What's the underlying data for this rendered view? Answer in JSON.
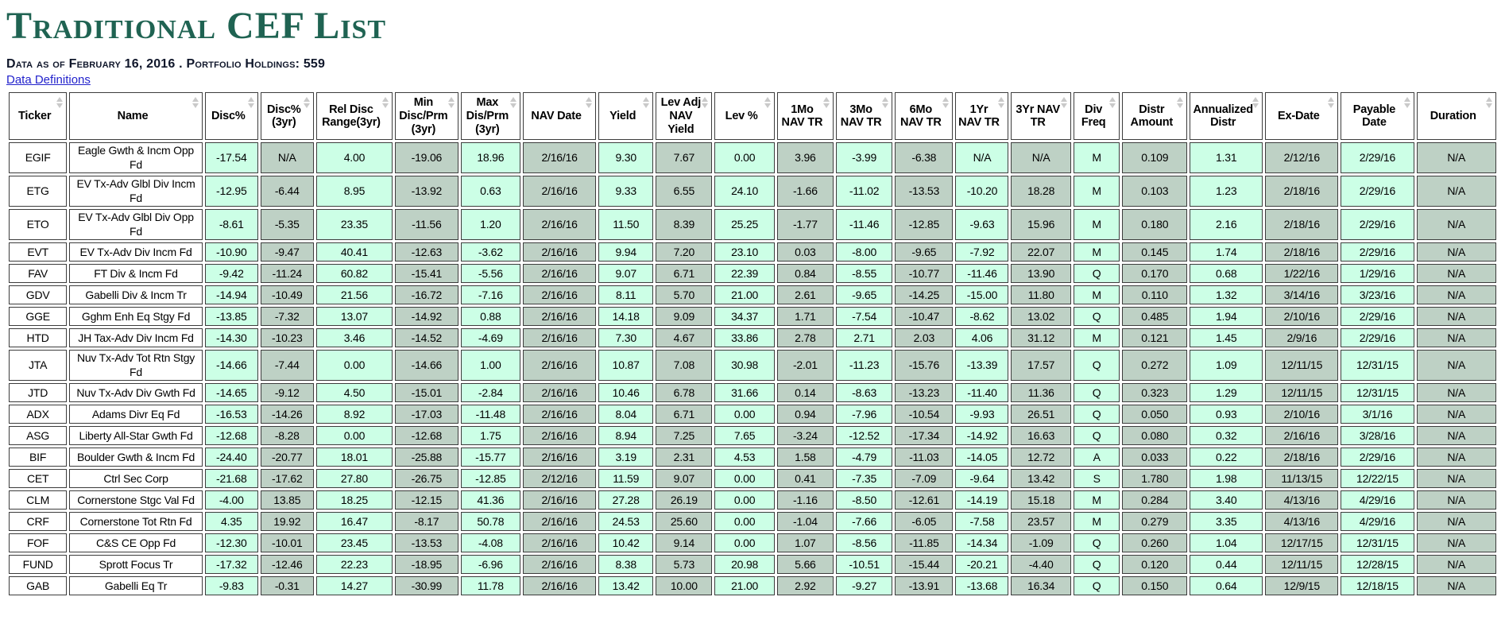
{
  "page": {
    "title": "Traditional CEF List",
    "meta": "Data as of February 16, 2016  .  Portfolio Holdings: 559",
    "definitions_link": "Data Definitions"
  },
  "colors": {
    "title_green": "#1f6352",
    "cell_green": "#ccffe6",
    "cell_gray": "#bed1c5",
    "link_blue": "#2222cc",
    "border": "#3c3c3c"
  },
  "table": {
    "columns": [
      "Ticker",
      "Name",
      "Disc%",
      "Disc% (3yr)",
      "Rel Disc Range(3yr)",
      "Min Disc/Prm (3yr)",
      "Max Dis/Prm (3yr)",
      "NAV Date",
      "Yield",
      "Lev Adj NAV Yield",
      "Lev %",
      "1Mo NAV TR",
      "3Mo NAV TR",
      "6Mo NAV TR",
      "1Yr NAV TR",
      "3Yr NAV TR",
      "Div Freq",
      "Distr Amount",
      "Annualized Distr",
      "Ex-Date",
      "Payable Date",
      "Duration"
    ],
    "rows": [
      [
        "EGIF",
        "Eagle Gwth & Incm Opp Fd",
        "-17.54",
        "N/A",
        "4.00",
        "-19.06",
        "18.96",
        "2/16/16",
        "9.30",
        "7.67",
        "0.00",
        "3.96",
        "-3.99",
        "-6.38",
        "N/A",
        "N/A",
        "M",
        "0.109",
        "1.31",
        "2/12/16",
        "2/29/16",
        "N/A"
      ],
      [
        "ETG",
        "EV Tx-Adv Glbl Div Incm Fd",
        "-12.95",
        "-6.44",
        "8.95",
        "-13.92",
        "0.63",
        "2/16/16",
        "9.33",
        "6.55",
        "24.10",
        "-1.66",
        "-11.02",
        "-13.53",
        "-10.20",
        "18.28",
        "M",
        "0.103",
        "1.23",
        "2/18/16",
        "2/29/16",
        "N/A"
      ],
      [
        "ETO",
        "EV Tx-Adv Glbl Div Opp Fd",
        "-8.61",
        "-5.35",
        "23.35",
        "-11.56",
        "1.20",
        "2/16/16",
        "11.50",
        "8.39",
        "25.25",
        "-1.77",
        "-11.46",
        "-12.85",
        "-9.63",
        "15.96",
        "M",
        "0.180",
        "2.16",
        "2/18/16",
        "2/29/16",
        "N/A"
      ],
      [
        "EVT",
        "EV Tx-Adv Div Incm Fd",
        "-10.90",
        "-9.47",
        "40.41",
        "-12.63",
        "-3.62",
        "2/16/16",
        "9.94",
        "7.20",
        "23.10",
        "0.03",
        "-8.00",
        "-9.65",
        "-7.92",
        "22.07",
        "M",
        "0.145",
        "1.74",
        "2/18/16",
        "2/29/16",
        "N/A"
      ],
      [
        "FAV",
        "FT Div & Incm Fd",
        "-9.42",
        "-11.24",
        "60.82",
        "-15.41",
        "-5.56",
        "2/16/16",
        "9.07",
        "6.71",
        "22.39",
        "0.84",
        "-8.55",
        "-10.77",
        "-11.46",
        "13.90",
        "Q",
        "0.170",
        "0.68",
        "1/22/16",
        "1/29/16",
        "N/A"
      ],
      [
        "GDV",
        "Gabelli Div & Incm Tr",
        "-14.94",
        "-10.49",
        "21.56",
        "-16.72",
        "-7.16",
        "2/16/16",
        "8.11",
        "5.70",
        "21.00",
        "2.61",
        "-9.65",
        "-14.25",
        "-15.00",
        "11.80",
        "M",
        "0.110",
        "1.32",
        "3/14/16",
        "3/23/16",
        "N/A"
      ],
      [
        "GGE",
        "Gghm Enh Eq Stgy Fd",
        "-13.85",
        "-7.32",
        "13.07",
        "-14.92",
        "0.88",
        "2/16/16",
        "14.18",
        "9.09",
        "34.37",
        "1.71",
        "-7.54",
        "-10.47",
        "-8.62",
        "13.02",
        "Q",
        "0.485",
        "1.94",
        "2/10/16",
        "2/29/16",
        "N/A"
      ],
      [
        "HTD",
        "JH Tax-Adv Div Incm Fd",
        "-14.30",
        "-10.23",
        "3.46",
        "-14.52",
        "-4.69",
        "2/16/16",
        "7.30",
        "4.67",
        "33.86",
        "2.78",
        "2.71",
        "2.03",
        "4.06",
        "31.12",
        "M",
        "0.121",
        "1.45",
        "2/9/16",
        "2/29/16",
        "N/A"
      ],
      [
        "JTA",
        "Nuv Tx-Adv Tot Rtn Stgy Fd",
        "-14.66",
        "-7.44",
        "0.00",
        "-14.66",
        "1.00",
        "2/16/16",
        "10.87",
        "7.08",
        "30.98",
        "-2.01",
        "-11.23",
        "-15.76",
        "-13.39",
        "17.57",
        "Q",
        "0.272",
        "1.09",
        "12/11/15",
        "12/31/15",
        "N/A"
      ],
      [
        "JTD",
        "Nuv Tx-Adv Div Gwth Fd",
        "-14.65",
        "-9.12",
        "4.50",
        "-15.01",
        "-2.84",
        "2/16/16",
        "10.46",
        "6.78",
        "31.66",
        "0.14",
        "-8.63",
        "-13.23",
        "-11.40",
        "11.36",
        "Q",
        "0.323",
        "1.29",
        "12/11/15",
        "12/31/15",
        "N/A"
      ],
      [
        "ADX",
        "Adams Divr Eq Fd",
        "-16.53",
        "-14.26",
        "8.92",
        "-17.03",
        "-11.48",
        "2/16/16",
        "8.04",
        "6.71",
        "0.00",
        "0.94",
        "-7.96",
        "-10.54",
        "-9.93",
        "26.51",
        "Q",
        "0.050",
        "0.93",
        "2/10/16",
        "3/1/16",
        "N/A"
      ],
      [
        "ASG",
        "Liberty All-Star Gwth Fd",
        "-12.68",
        "-8.28",
        "0.00",
        "-12.68",
        "1.75",
        "2/16/16",
        "8.94",
        "7.25",
        "7.65",
        "-3.24",
        "-12.52",
        "-17.34",
        "-14.92",
        "16.63",
        "Q",
        "0.080",
        "0.32",
        "2/16/16",
        "3/28/16",
        "N/A"
      ],
      [
        "BIF",
        "Boulder Gwth & Incm Fd",
        "-24.40",
        "-20.77",
        "18.01",
        "-25.88",
        "-15.77",
        "2/16/16",
        "3.19",
        "2.31",
        "4.53",
        "1.58",
        "-4.79",
        "-11.03",
        "-14.05",
        "12.72",
        "A",
        "0.033",
        "0.22",
        "2/18/16",
        "2/29/16",
        "N/A"
      ],
      [
        "CET",
        "Ctrl Sec Corp",
        "-21.68",
        "-17.62",
        "27.80",
        "-26.75",
        "-12.85",
        "2/12/16",
        "11.59",
        "9.07",
        "0.00",
        "0.41",
        "-7.35",
        "-7.09",
        "-9.64",
        "13.42",
        "S",
        "1.780",
        "1.98",
        "11/13/15",
        "12/22/15",
        "N/A"
      ],
      [
        "CLM",
        "Cornerstone Stgc Val Fd",
        "-4.00",
        "13.85",
        "18.25",
        "-12.15",
        "41.36",
        "2/16/16",
        "27.28",
        "26.19",
        "0.00",
        "-1.16",
        "-8.50",
        "-12.61",
        "-14.19",
        "15.18",
        "M",
        "0.284",
        "3.40",
        "4/13/16",
        "4/29/16",
        "N/A"
      ],
      [
        "CRF",
        "Cornerstone Tot Rtn Fd",
        "4.35",
        "19.92",
        "16.47",
        "-8.17",
        "50.78",
        "2/16/16",
        "24.53",
        "25.60",
        "0.00",
        "-1.04",
        "-7.66",
        "-6.05",
        "-7.58",
        "23.57",
        "M",
        "0.279",
        "3.35",
        "4/13/16",
        "4/29/16",
        "N/A"
      ],
      [
        "FOF",
        "C&S CE Opp Fd",
        "-12.30",
        "-10.01",
        "23.45",
        "-13.53",
        "-4.08",
        "2/16/16",
        "10.42",
        "9.14",
        "0.00",
        "1.07",
        "-8.56",
        "-11.85",
        "-14.34",
        "-1.09",
        "Q",
        "0.260",
        "1.04",
        "12/17/15",
        "12/31/15",
        "N/A"
      ],
      [
        "FUND",
        "Sprott Focus Tr",
        "-17.32",
        "-12.46",
        "22.23",
        "-18.95",
        "-6.96",
        "2/16/16",
        "8.38",
        "5.73",
        "20.98",
        "5.66",
        "-10.51",
        "-15.44",
        "-20.21",
        "-4.40",
        "Q",
        "0.120",
        "0.44",
        "12/11/15",
        "12/28/15",
        "N/A"
      ],
      [
        "GAB",
        "Gabelli Eq Tr",
        "-9.83",
        "-0.31",
        "14.27",
        "-30.99",
        "11.78",
        "2/16/16",
        "13.42",
        "10.00",
        "21.00",
        "2.92",
        "-9.27",
        "-13.91",
        "-13.68",
        "16.34",
        "Q",
        "0.150",
        "0.64",
        "12/9/15",
        "12/18/15",
        "N/A"
      ]
    ]
  }
}
